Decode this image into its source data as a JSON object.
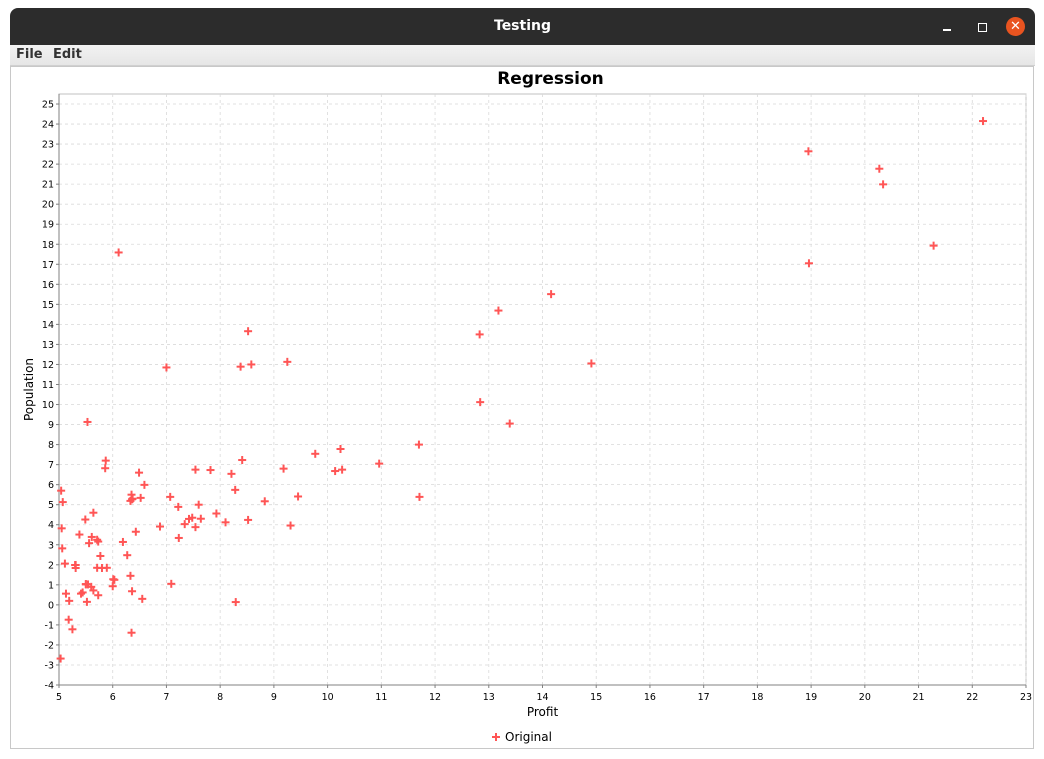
{
  "window": {
    "title": "Testing"
  },
  "menu": {
    "file": "File",
    "edit": "Edit"
  },
  "colors": {
    "series": "#ff5555",
    "grid": "#d9d9d9"
  },
  "chart_data": {
    "type": "scatter",
    "title": "Regression",
    "xlabel": "Profit",
    "ylabel": "Population",
    "xlim": [
      5,
      23
    ],
    "ylim": [
      -4,
      25.5
    ],
    "xticks": [
      5,
      6,
      7,
      8,
      9,
      10,
      11,
      12,
      13,
      14,
      15,
      16,
      17,
      18,
      19,
      20,
      21,
      22,
      23
    ],
    "yticks": [
      -4,
      -3,
      -2,
      -1,
      0,
      1,
      2,
      3,
      4,
      5,
      6,
      7,
      8,
      9,
      10,
      11,
      12,
      13,
      14,
      15,
      16,
      17,
      18,
      19,
      20,
      21,
      22,
      23,
      24,
      25
    ],
    "grid": true,
    "legend_position": "bottom",
    "series": [
      {
        "name": "Original",
        "marker": "plus",
        "points": [
          [
            6.11,
            17.59
          ],
          [
            5.53,
            9.13
          ],
          [
            8.52,
            13.66
          ],
          [
            7.0,
            11.85
          ],
          [
            5.86,
            6.82
          ],
          [
            8.38,
            11.89
          ],
          [
            7.48,
            4.35
          ],
          [
            8.58,
            12.0
          ],
          [
            6.49,
            6.6
          ],
          [
            5.05,
            3.82
          ],
          [
            5.71,
            3.25
          ],
          [
            14.16,
            15.51
          ],
          [
            5.73,
            3.16
          ],
          [
            8.41,
            7.23
          ],
          [
            5.64,
            0.72
          ],
          [
            5.38,
            3.51
          ],
          [
            6.37,
            5.3
          ],
          [
            5.13,
            0.56
          ],
          [
            6.43,
            3.65
          ],
          [
            7.07,
            5.39
          ],
          [
            6.19,
            3.14
          ],
          [
            20.27,
            21.77
          ],
          [
            5.49,
            4.26
          ],
          [
            6.33,
            5.19
          ],
          [
            5.56,
            3.08
          ],
          [
            18.95,
            22.64
          ],
          [
            12.83,
            13.5
          ],
          [
            10.96,
            7.05
          ],
          [
            13.18,
            14.69
          ],
          [
            22.2,
            24.15
          ],
          [
            5.25,
            -1.22
          ],
          [
            6.59,
            5.99
          ],
          [
            9.25,
            12.13
          ],
          [
            5.89,
            1.85
          ],
          [
            8.21,
            6.54
          ],
          [
            7.93,
            4.56
          ],
          [
            8.1,
            4.12
          ],
          [
            5.61,
            3.39
          ],
          [
            12.84,
            10.12
          ],
          [
            6.35,
            5.5
          ],
          [
            5.41,
            0.56
          ],
          [
            6.88,
            3.91
          ],
          [
            11.71,
            5.39
          ],
          [
            5.77,
            2.44
          ],
          [
            7.82,
            6.73
          ],
          [
            7.09,
            1.05
          ],
          [
            5.07,
            5.13
          ],
          [
            5.8,
            1.84
          ],
          [
            11.7,
            8.0
          ],
          [
            5.54,
            1.02
          ],
          [
            7.54,
            6.75
          ],
          [
            5.31,
            1.84
          ],
          [
            7.42,
            4.29
          ],
          [
            7.6,
            5.0
          ],
          [
            6.03,
            1.25
          ],
          [
            6.33,
            1.45
          ],
          [
            6.36,
            5.27
          ],
          [
            6.27,
            2.48
          ],
          [
            5.64,
            4.6
          ],
          [
            9.31,
            3.96
          ],
          [
            9.45,
            5.41
          ],
          [
            8.83,
            5.17
          ],
          [
            5.18,
            -0.74
          ],
          [
            21.28,
            17.93
          ],
          [
            14.91,
            12.05
          ],
          [
            18.96,
            17.05
          ],
          [
            7.22,
            4.89
          ],
          [
            5.3,
            1.99
          ],
          [
            10.24,
            7.78
          ],
          [
            5.5,
            1.02
          ],
          [
            20.34,
            20.99
          ],
          [
            10.14,
            6.68
          ],
          [
            7.34,
            4.03
          ],
          [
            6.01,
            1.28
          ],
          [
            7.23,
            3.34
          ],
          [
            5.03,
            -2.68
          ],
          [
            6.55,
            0.3
          ],
          [
            7.54,
            3.88
          ],
          [
            5.04,
            5.7
          ],
          [
            10.27,
            6.75
          ],
          [
            5.11,
            2.06
          ],
          [
            5.73,
            0.48
          ],
          [
            5.19,
            0.2
          ],
          [
            6.36,
            0.68
          ],
          [
            9.77,
            7.54
          ],
          [
            6.52,
            5.34
          ],
          [
            8.52,
            4.24
          ],
          [
            9.18,
            6.8
          ],
          [
            6.0,
            0.93
          ],
          [
            5.52,
            0.15
          ],
          [
            5.06,
            2.82
          ],
          [
            5.71,
            1.85
          ],
          [
            7.64,
            4.3
          ],
          [
            5.87,
            7.2
          ],
          [
            5.31,
            1.99
          ],
          [
            8.29,
            0.14
          ],
          [
            5.44,
            0.62
          ],
          [
            6.35,
            -1.39
          ],
          [
            8.28,
            5.74
          ],
          [
            13.39,
            9.05
          ],
          [
            5.5,
            1.04
          ],
          [
            5.6,
            0.9
          ]
        ]
      }
    ]
  }
}
